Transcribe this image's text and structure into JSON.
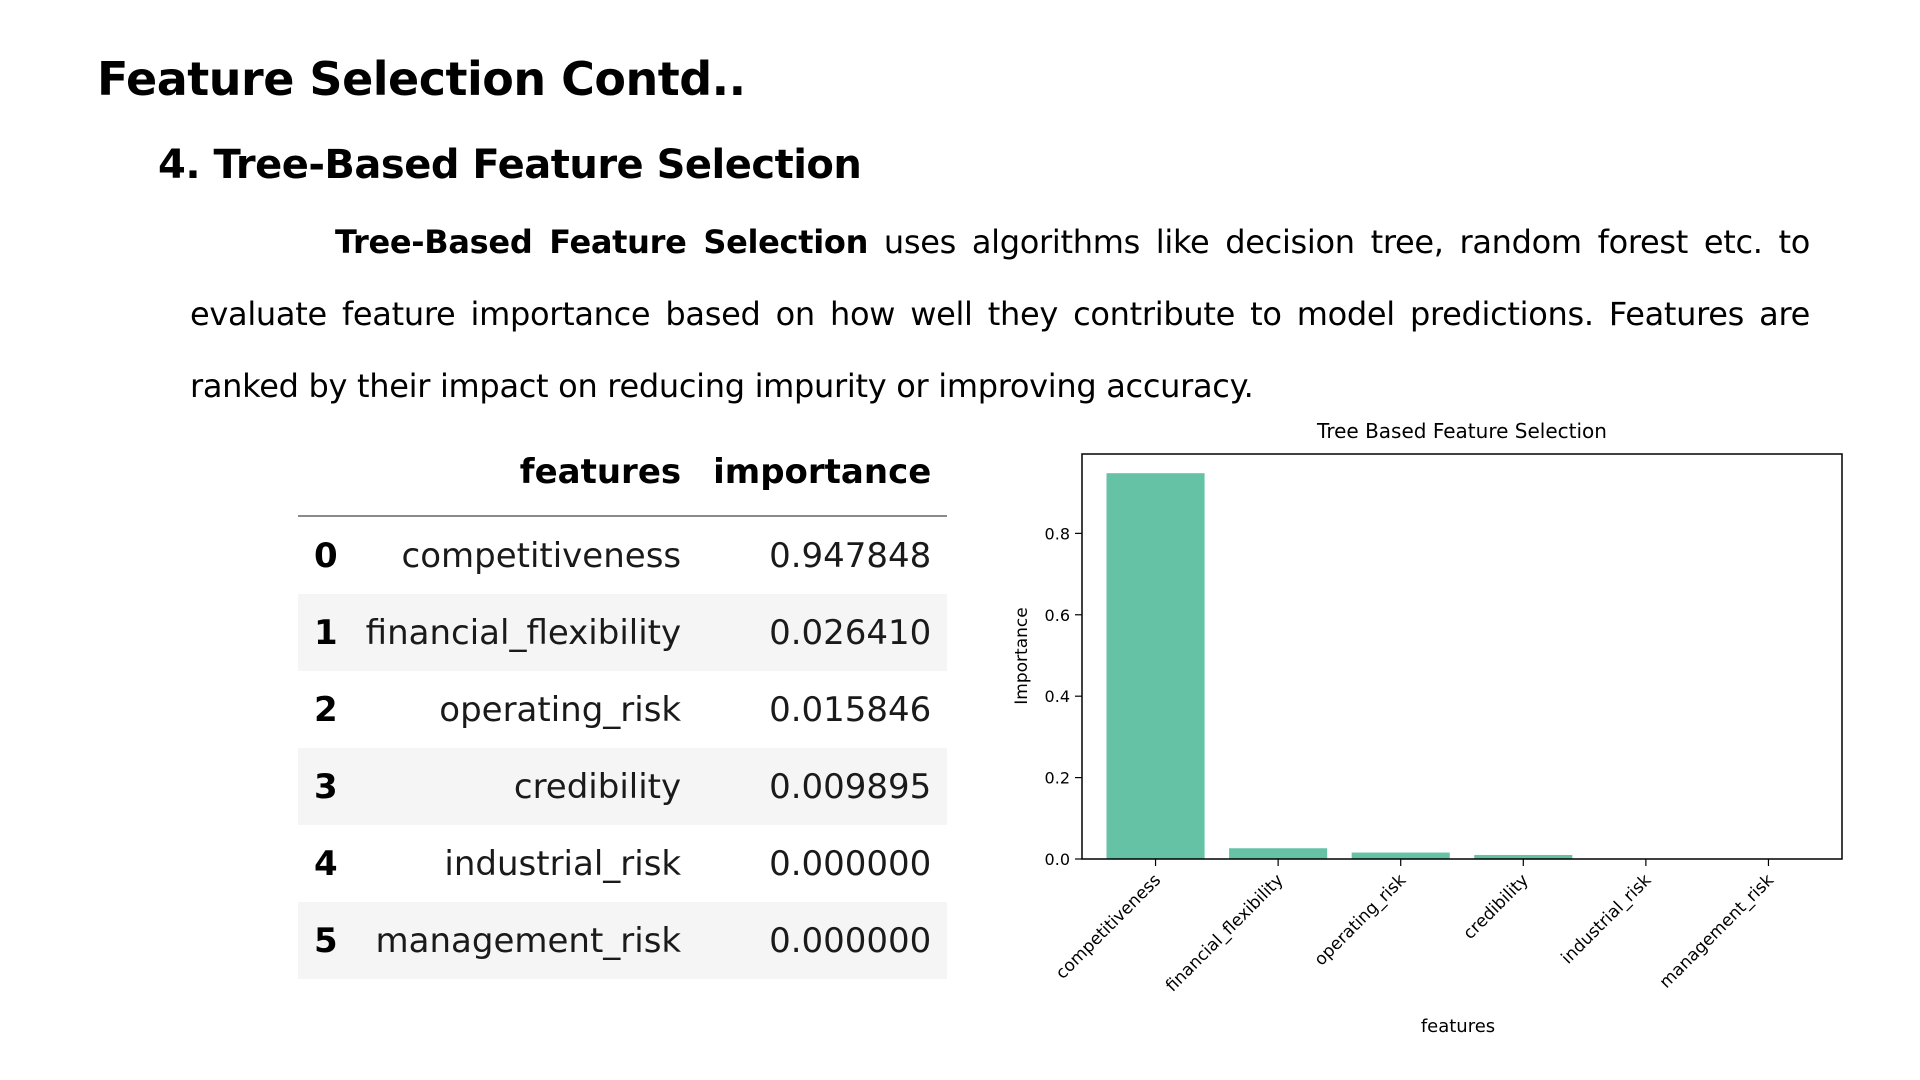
{
  "page": {
    "title": "Feature Selection Contd..",
    "section_title": "4. Tree-Based Feature Selection",
    "paragraph_bold": "Tree-Based Feature Selection",
    "paragraph_rest": " uses algorithms like decision tree, random forest etc.  to evaluate feature importance based on how well they contribute to model predictions. Features are ranked by their impact on reducing impurity or improving accuracy."
  },
  "table": {
    "headers": [
      "",
      "features",
      "importance"
    ],
    "rows": [
      {
        "index": "0",
        "feature": "competitiveness",
        "importance": "0.947848"
      },
      {
        "index": "1",
        "feature": "financial_flexibility",
        "importance": "0.026410"
      },
      {
        "index": "2",
        "feature": "operating_risk",
        "importance": "0.015846"
      },
      {
        "index": "3",
        "feature": "credibility",
        "importance": "0.009895"
      },
      {
        "index": "4",
        "feature": "industrial_risk",
        "importance": "0.000000"
      },
      {
        "index": "5",
        "feature": "management_risk",
        "importance": "0.000000"
      }
    ]
  },
  "chart_data": {
    "type": "bar",
    "title": "Tree Based Feature Selection",
    "xlabel": "features",
    "ylabel": "Importance",
    "categories": [
      "competitiveness",
      "financial_flexibility",
      "operating_risk",
      "credibility",
      "industrial_risk",
      "management_risk"
    ],
    "values": [
      0.947848,
      0.02641,
      0.015846,
      0.009895,
      0.0,
      0.0
    ],
    "ylim": [
      0,
      0.995
    ],
    "yticks": [
      0.0,
      0.2,
      0.4,
      0.6,
      0.8
    ],
    "ytick_labels": [
      "0.0",
      "0.2",
      "0.4",
      "0.6",
      "0.8"
    ],
    "bar_color": "#66c2a5",
    "grid": false,
    "legend": false
  }
}
